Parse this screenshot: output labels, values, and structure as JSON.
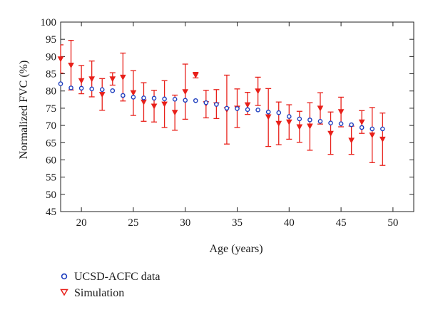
{
  "chart_data": {
    "type": "scatter",
    "xlabel": "Age (years)",
    "ylabel": "Normalized FVC (%)",
    "xlim": [
      18,
      52
    ],
    "ylim": [
      45,
      100
    ],
    "xticks": [
      20,
      25,
      30,
      35,
      40,
      45,
      50
    ],
    "yticks": [
      45,
      50,
      55,
      60,
      65,
      70,
      75,
      80,
      85,
      90,
      95,
      100
    ],
    "grid": false,
    "legend_position": "below",
    "series": [
      {
        "name": "UCSD-ACFC data",
        "marker": "circle",
        "color": "#1f3fbf",
        "x": [
          18,
          19,
          20,
          21,
          22,
          23,
          24,
          25,
          26,
          27,
          28,
          29,
          30,
          31,
          32,
          33,
          34,
          35,
          36,
          37,
          38,
          39,
          40,
          41,
          42,
          43,
          44,
          45,
          46,
          47,
          48,
          49
        ],
        "y": [
          82.1,
          80.9,
          80.8,
          80.6,
          80.4,
          80.1,
          78.7,
          78.2,
          78.0,
          77.9,
          77.7,
          77.6,
          77.3,
          77.2,
          76.6,
          76.1,
          75.0,
          74.9,
          74.6,
          74.5,
          73.9,
          73.7,
          72.6,
          71.9,
          71.6,
          71.2,
          70.7,
          70.5,
          70.2,
          69.4,
          69.0,
          69.0
        ]
      },
      {
        "name": "Simulation",
        "marker": "triangle-down",
        "color": "#e8201a",
        "x": [
          18,
          19,
          20,
          21,
          22,
          23,
          24,
          25,
          26,
          27,
          28,
          29,
          30,
          31,
          32,
          33,
          34,
          35,
          36,
          37,
          38,
          39,
          40,
          41,
          42,
          43,
          44,
          45,
          46,
          47,
          48,
          49
        ],
        "y": [
          89.3,
          87.5,
          83.0,
          83.5,
          79.0,
          83.5,
          84.0,
          79.5,
          76.8,
          75.6,
          76.2,
          73.8,
          79.8,
          84.6,
          76.3,
          76.0,
          74.6,
          75.0,
          76.0,
          80.0,
          72.5,
          70.6,
          71.0,
          69.6,
          69.8,
          75.0,
          67.7,
          74.0,
          65.7,
          71.0,
          67.2,
          66.0
        ],
        "err_low": [
          85.2,
          80.3,
          79.2,
          78.3,
          74.4,
          81.7,
          77.1,
          72.9,
          71.2,
          71.0,
          69.4,
          68.6,
          71.8,
          83.8,
          72.2,
          72.0,
          64.6,
          69.4,
          73.2,
          75.8,
          63.9,
          64.4,
          66.0,
          65.1,
          62.8,
          70.4,
          61.6,
          69.6,
          61.6,
          67.7,
          59.2,
          58.4
        ],
        "err_high": [
          93.4,
          94.7,
          87.4,
          88.7,
          83.6,
          85.3,
          91.0,
          85.9,
          82.4,
          80.2,
          83.0,
          78.8,
          87.8,
          85.4,
          80.2,
          80.4,
          84.6,
          80.6,
          79.6,
          84.0,
          80.7,
          76.8,
          76.0,
          74.1,
          76.6,
          79.5,
          73.9,
          78.2,
          69.8,
          74.3,
          75.2,
          73.6
        ]
      }
    ]
  }
}
